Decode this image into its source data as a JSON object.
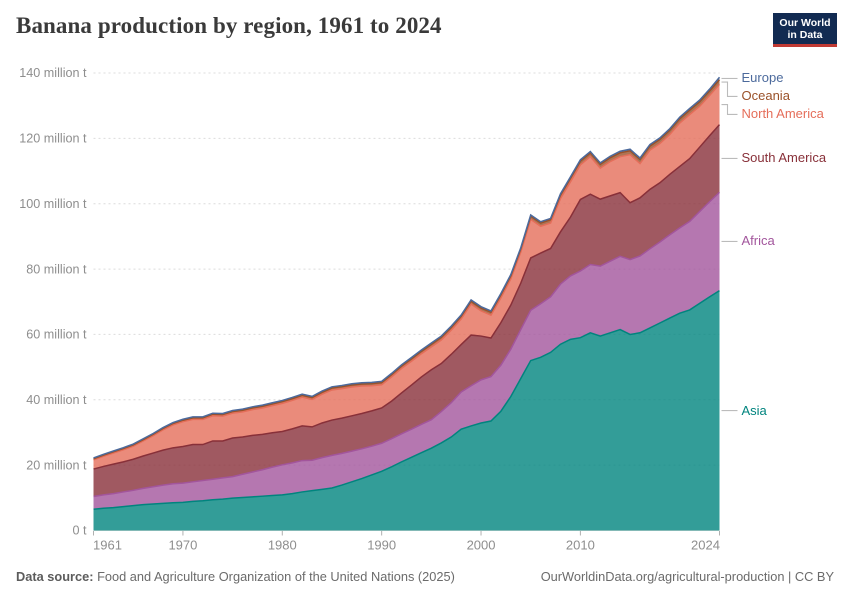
{
  "header": {
    "title": "Banana production by region, 1961 to 2024",
    "logo": {
      "line1": "Our World",
      "line2": "in Data"
    }
  },
  "footer": {
    "source_label": "Data source:",
    "source_text": " Food and Agriculture Organization of the United Nations (2025)",
    "link_text": "OurWorldinData.org/agricultural-production | CC BY"
  },
  "colors": {
    "asia": "#00847E",
    "africa": "#A2559C",
    "south_america": "#883039",
    "north_america": "#E56E5A",
    "oceania": "#9A5129",
    "europe": "#4C6A9C",
    "gridline": "#dcdcdc",
    "tick_text": "#8e8e8e",
    "connector": "#bbbbbb"
  },
  "chart_data": {
    "type": "area",
    "stacked": true,
    "title": "Banana production by region, 1961 to 2024",
    "unit": "million t",
    "ylim": [
      0,
      140
    ],
    "grid": true,
    "legend_position": "right",
    "x": [
      1961,
      1962,
      1963,
      1964,
      1965,
      1966,
      1967,
      1968,
      1969,
      1970,
      1971,
      1972,
      1973,
      1974,
      1975,
      1976,
      1977,
      1978,
      1979,
      1980,
      1981,
      1982,
      1983,
      1984,
      1985,
      1986,
      1987,
      1988,
      1989,
      1990,
      1991,
      1992,
      1993,
      1994,
      1995,
      1996,
      1997,
      1998,
      1999,
      2000,
      2001,
      2002,
      2003,
      2004,
      2005,
      2006,
      2007,
      2008,
      2009,
      2010,
      2011,
      2012,
      2013,
      2014,
      2015,
      2016,
      2017,
      2018,
      2019,
      2020,
      2021,
      2022,
      2023,
      2024
    ],
    "xticks": [
      1961,
      1970,
      1980,
      1990,
      2000,
      2010,
      2024
    ],
    "yticks": [
      {
        "value": 0,
        "label": "0 t"
      },
      {
        "value": 20,
        "label": "20 million t"
      },
      {
        "value": 40,
        "label": "40 million t"
      },
      {
        "value": 60,
        "label": "60 million t"
      },
      {
        "value": 80,
        "label": "80 million t"
      },
      {
        "value": 100,
        "label": "100 million t"
      },
      {
        "value": 120,
        "label": "120 million t"
      },
      {
        "value": 140,
        "label": "140 million t"
      }
    ],
    "series": [
      {
        "name": "Asia",
        "color": "#00847E",
        "values": [
          6.5,
          6.8,
          7.0,
          7.3,
          7.6,
          7.9,
          8.1,
          8.3,
          8.5,
          8.6,
          8.9,
          9.1,
          9.4,
          9.6,
          9.9,
          10.1,
          10.3,
          10.5,
          10.7,
          10.9,
          11.3,
          11.8,
          12.2,
          12.6,
          13.0,
          13.9,
          14.9,
          15.9,
          17.0,
          18.1,
          19.5,
          21.0,
          22.4,
          23.8,
          25.2,
          26.8,
          28.6,
          31.0,
          32.0,
          32.9,
          33.5,
          36.5,
          41.0,
          46.5,
          52.0,
          53.0,
          54.5,
          57.0,
          58.5,
          59.0,
          60.5,
          59.5,
          60.5,
          61.5,
          60.0,
          60.5,
          62.0,
          63.5,
          65.0,
          66.5,
          67.5,
          69.5,
          71.5,
          73.4
        ]
      },
      {
        "name": "Africa",
        "color": "#A2559C",
        "values": [
          3.9,
          4.1,
          4.3,
          4.5,
          4.7,
          5.0,
          5.3,
          5.6,
          5.8,
          5.9,
          6.0,
          6.2,
          6.3,
          6.5,
          6.6,
          7.1,
          7.6,
          8.1,
          8.7,
          9.2,
          9.4,
          9.6,
          9.3,
          9.7,
          10.0,
          9.7,
          9.4,
          9.1,
          8.8,
          8.6,
          8.6,
          8.6,
          8.6,
          8.7,
          8.7,
          9.6,
          10.5,
          11.4,
          12.3,
          13.2,
          13.6,
          14.1,
          14.5,
          15.0,
          15.4,
          16.4,
          17.0,
          18.4,
          19.4,
          20.4,
          20.9,
          21.4,
          21.9,
          22.4,
          22.9,
          23.5,
          24.2,
          24.8,
          25.5,
          26.1,
          27.1,
          28.1,
          29.1,
          30.1
        ]
      },
      {
        "name": "South America",
        "color": "#883039",
        "values": [
          8.4,
          8.7,
          9.0,
          9.2,
          9.5,
          9.9,
          10.3,
          10.7,
          11.0,
          11.2,
          11.4,
          11.0,
          11.7,
          11.3,
          11.8,
          11.4,
          11.2,
          10.8,
          10.5,
          10.2,
          10.4,
          10.6,
          10.2,
          10.6,
          10.8,
          10.8,
          10.8,
          10.8,
          10.8,
          10.8,
          11.5,
          12.5,
          13.5,
          14.5,
          15.3,
          14.7,
          14.8,
          14.5,
          15.5,
          13.4,
          11.8,
          13.0,
          13.5,
          14.2,
          16.0,
          15.5,
          14.8,
          16.0,
          18.0,
          21.9,
          21.5,
          20.5,
          20.0,
          19.5,
          17.4,
          17.8,
          18.2,
          18.1,
          18.5,
          18.8,
          19.2,
          19.7,
          20.2,
          20.7
        ]
      },
      {
        "name": "North America",
        "color": "#E56E5A",
        "values": [
          2.8,
          3.1,
          3.4,
          3.7,
          4.0,
          4.6,
          5.3,
          6.2,
          7.0,
          7.6,
          7.7,
          7.7,
          7.7,
          7.6,
          7.6,
          7.7,
          7.9,
          8.1,
          8.3,
          8.6,
          8.7,
          8.8,
          8.4,
          8.8,
          9.2,
          9.0,
          8.8,
          8.4,
          7.7,
          7.1,
          7.4,
          7.5,
          7.3,
          7.1,
          7.0,
          7.2,
          7.4,
          7.8,
          9.5,
          7.7,
          7.0,
          7.6,
          8.0,
          9.5,
          11.8,
          8.2,
          7.8,
          10.2,
          10.8,
          10.6,
          11.5,
          9.5,
          10.5,
          11.0,
          14.7,
          10.5,
          12.0,
          12.0,
          12.2,
          13.3,
          13.5,
          12.5,
          12.3,
          12.3
        ]
      },
      {
        "name": "Oceania",
        "color": "#9A5129",
        "values": [
          0.35,
          0.36,
          0.37,
          0.38,
          0.39,
          0.4,
          0.41,
          0.42,
          0.44,
          0.45,
          0.46,
          0.47,
          0.48,
          0.49,
          0.5,
          0.51,
          0.52,
          0.53,
          0.54,
          0.55,
          0.56,
          0.57,
          0.58,
          0.59,
          0.6,
          0.61,
          0.62,
          0.63,
          0.64,
          0.65,
          0.67,
          0.69,
          0.71,
          0.73,
          0.75,
          0.77,
          0.79,
          0.81,
          0.83,
          0.85,
          0.87,
          0.89,
          0.91,
          0.93,
          0.95,
          0.98,
          1.0,
          1.03,
          1.06,
          1.1,
          1.12,
          1.14,
          1.16,
          1.18,
          1.2,
          1.22,
          1.24,
          1.26,
          1.28,
          1.3,
          1.33,
          1.36,
          1.4,
          1.45
        ]
      },
      {
        "name": "Europe",
        "color": "#4C6A9C",
        "values": [
          0.25,
          0.26,
          0.26,
          0.27,
          0.27,
          0.28,
          0.28,
          0.29,
          0.29,
          0.3,
          0.3,
          0.31,
          0.31,
          0.32,
          0.32,
          0.33,
          0.33,
          0.34,
          0.34,
          0.35,
          0.35,
          0.36,
          0.36,
          0.37,
          0.37,
          0.38,
          0.38,
          0.39,
          0.39,
          0.4,
          0.41,
          0.41,
          0.42,
          0.42,
          0.43,
          0.43,
          0.44,
          0.44,
          0.44,
          0.45,
          0.43,
          0.43,
          0.42,
          0.41,
          0.4,
          0.42,
          0.4,
          0.42,
          0.44,
          0.45,
          0.45,
          0.46,
          0.46,
          0.47,
          0.47,
          0.48,
          0.48,
          0.49,
          0.49,
          0.5,
          0.52,
          0.54,
          0.55,
          0.75
        ]
      }
    ],
    "legend_order_top_to_bottom": [
      "Europe",
      "Oceania",
      "North America",
      "South America",
      "Africa",
      "Asia"
    ]
  }
}
